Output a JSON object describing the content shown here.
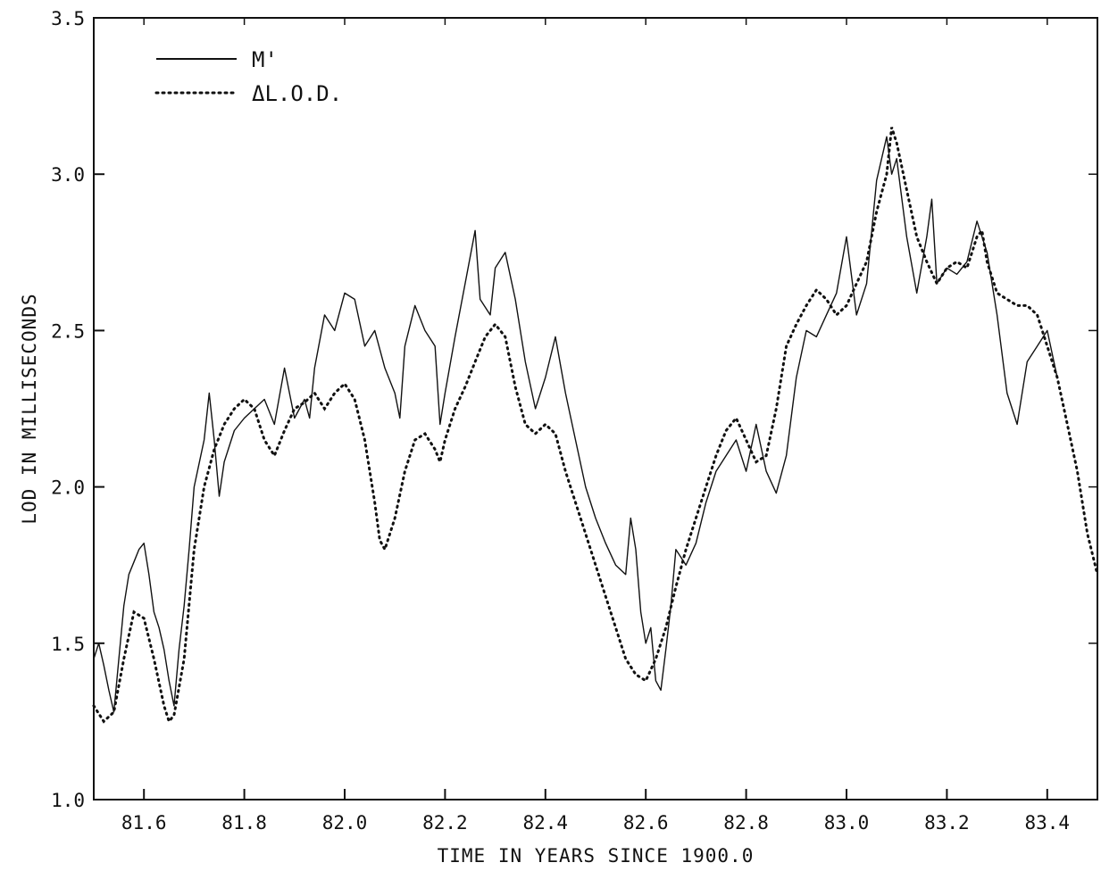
{
  "chart_data": {
    "type": "line",
    "title": "",
    "xlabel": "TIME IN YEARS SINCE 1900.0",
    "ylabel": "LOD IN MILLISECONDS",
    "xlim": [
      81.5,
      83.5
    ],
    "ylim": [
      1.0,
      3.5
    ],
    "grid": false,
    "legend_position": "top-left",
    "x_ticks": [
      81.6,
      81.8,
      82.0,
      82.2,
      82.4,
      82.6,
      82.8,
      83.0,
      83.2,
      83.4
    ],
    "x_tick_labels": [
      "81.6",
      "81.8",
      "82.0",
      "82.2",
      "82.4",
      "82.6",
      "82.8",
      "83.0",
      "83.2",
      "83.4"
    ],
    "y_ticks": [
      1.0,
      1.5,
      2.0,
      2.5,
      3.0,
      3.5
    ],
    "y_tick_labels": [
      "1.0",
      "1.5",
      "2.0",
      "2.5",
      "3.0",
      "3.5"
    ],
    "series": [
      {
        "name": "M'",
        "style": "solid",
        "color": "#111111",
        "points": [
          [
            81.5,
            1.45
          ],
          [
            81.51,
            1.5
          ],
          [
            81.52,
            1.43
          ],
          [
            81.53,
            1.35
          ],
          [
            81.54,
            1.28
          ],
          [
            81.55,
            1.45
          ],
          [
            81.56,
            1.62
          ],
          [
            81.57,
            1.72
          ],
          [
            81.58,
            1.76
          ],
          [
            81.59,
            1.8
          ],
          [
            81.6,
            1.82
          ],
          [
            81.61,
            1.72
          ],
          [
            81.62,
            1.6
          ],
          [
            81.63,
            1.55
          ],
          [
            81.64,
            1.48
          ],
          [
            81.65,
            1.38
          ],
          [
            81.66,
            1.3
          ],
          [
            81.67,
            1.48
          ],
          [
            81.68,
            1.62
          ],
          [
            81.69,
            1.8
          ],
          [
            81.7,
            2.0
          ],
          [
            81.72,
            2.15
          ],
          [
            81.73,
            2.3
          ],
          [
            81.74,
            2.15
          ],
          [
            81.75,
            1.97
          ],
          [
            81.76,
            2.08
          ],
          [
            81.78,
            2.18
          ],
          [
            81.8,
            2.22
          ],
          [
            81.82,
            2.25
          ],
          [
            81.84,
            2.28
          ],
          [
            81.86,
            2.2
          ],
          [
            81.88,
            2.38
          ],
          [
            81.9,
            2.22
          ],
          [
            81.92,
            2.28
          ],
          [
            81.93,
            2.22
          ],
          [
            81.94,
            2.38
          ],
          [
            81.96,
            2.55
          ],
          [
            81.98,
            2.5
          ],
          [
            82.0,
            2.62
          ],
          [
            82.02,
            2.6
          ],
          [
            82.04,
            2.45
          ],
          [
            82.06,
            2.5
          ],
          [
            82.08,
            2.38
          ],
          [
            82.1,
            2.3
          ],
          [
            82.11,
            2.22
          ],
          [
            82.12,
            2.45
          ],
          [
            82.14,
            2.58
          ],
          [
            82.16,
            2.5
          ],
          [
            82.18,
            2.45
          ],
          [
            82.19,
            2.2
          ],
          [
            82.2,
            2.3
          ],
          [
            82.22,
            2.48
          ],
          [
            82.24,
            2.65
          ],
          [
            82.26,
            2.82
          ],
          [
            82.27,
            2.6
          ],
          [
            82.29,
            2.55
          ],
          [
            82.3,
            2.7
          ],
          [
            82.32,
            2.75
          ],
          [
            82.34,
            2.6
          ],
          [
            82.36,
            2.4
          ],
          [
            82.38,
            2.25
          ],
          [
            82.4,
            2.35
          ],
          [
            82.42,
            2.48
          ],
          [
            82.44,
            2.3
          ],
          [
            82.46,
            2.15
          ],
          [
            82.48,
            2.0
          ],
          [
            82.5,
            1.9
          ],
          [
            82.52,
            1.82
          ],
          [
            82.54,
            1.75
          ],
          [
            82.56,
            1.72
          ],
          [
            82.57,
            1.9
          ],
          [
            82.58,
            1.8
          ],
          [
            82.59,
            1.6
          ],
          [
            82.6,
            1.5
          ],
          [
            82.61,
            1.55
          ],
          [
            82.62,
            1.38
          ],
          [
            82.63,
            1.35
          ],
          [
            82.64,
            1.48
          ],
          [
            82.65,
            1.62
          ],
          [
            82.66,
            1.8
          ],
          [
            82.68,
            1.75
          ],
          [
            82.7,
            1.82
          ],
          [
            82.72,
            1.95
          ],
          [
            82.74,
            2.05
          ],
          [
            82.76,
            2.1
          ],
          [
            82.78,
            2.15
          ],
          [
            82.8,
            2.05
          ],
          [
            82.82,
            2.2
          ],
          [
            82.84,
            2.05
          ],
          [
            82.86,
            1.98
          ],
          [
            82.88,
            2.1
          ],
          [
            82.9,
            2.35
          ],
          [
            82.92,
            2.5
          ],
          [
            82.94,
            2.48
          ],
          [
            82.96,
            2.55
          ],
          [
            82.98,
            2.62
          ],
          [
            83.0,
            2.8
          ],
          [
            83.02,
            2.55
          ],
          [
            83.04,
            2.65
          ],
          [
            83.06,
            2.98
          ],
          [
            83.08,
            3.12
          ],
          [
            83.09,
            3.0
          ],
          [
            83.1,
            3.05
          ],
          [
            83.12,
            2.8
          ],
          [
            83.14,
            2.62
          ],
          [
            83.16,
            2.8
          ],
          [
            83.17,
            2.92
          ],
          [
            83.18,
            2.65
          ],
          [
            83.2,
            2.7
          ],
          [
            83.22,
            2.68
          ],
          [
            83.24,
            2.72
          ],
          [
            83.26,
            2.85
          ],
          [
            83.28,
            2.75
          ],
          [
            83.3,
            2.55
          ],
          [
            83.32,
            2.3
          ],
          [
            83.34,
            2.2
          ],
          [
            83.36,
            2.4
          ],
          [
            83.38,
            2.45
          ],
          [
            83.4,
            2.5
          ],
          [
            83.42,
            2.35
          ]
        ]
      },
      {
        "name": "ΔL.O.D.",
        "style": "dotted",
        "color": "#111111",
        "points": [
          [
            81.5,
            1.3
          ],
          [
            81.52,
            1.25
          ],
          [
            81.54,
            1.28
          ],
          [
            81.56,
            1.45
          ],
          [
            81.58,
            1.6
          ],
          [
            81.6,
            1.58
          ],
          [
            81.62,
            1.45
          ],
          [
            81.64,
            1.3
          ],
          [
            81.65,
            1.25
          ],
          [
            81.66,
            1.27
          ],
          [
            81.68,
            1.45
          ],
          [
            81.7,
            1.8
          ],
          [
            81.72,
            2.0
          ],
          [
            81.74,
            2.12
          ],
          [
            81.76,
            2.2
          ],
          [
            81.78,
            2.25
          ],
          [
            81.8,
            2.28
          ],
          [
            81.82,
            2.25
          ],
          [
            81.84,
            2.15
          ],
          [
            81.86,
            2.1
          ],
          [
            81.88,
            2.18
          ],
          [
            81.9,
            2.25
          ],
          [
            81.92,
            2.27
          ],
          [
            81.94,
            2.3
          ],
          [
            81.96,
            2.25
          ],
          [
            81.98,
            2.3
          ],
          [
            82.0,
            2.33
          ],
          [
            82.02,
            2.28
          ],
          [
            82.04,
            2.15
          ],
          [
            82.06,
            1.95
          ],
          [
            82.07,
            1.83
          ],
          [
            82.08,
            1.8
          ],
          [
            82.1,
            1.9
          ],
          [
            82.12,
            2.05
          ],
          [
            82.14,
            2.15
          ],
          [
            82.16,
            2.17
          ],
          [
            82.18,
            2.12
          ],
          [
            82.19,
            2.08
          ],
          [
            82.2,
            2.15
          ],
          [
            82.22,
            2.25
          ],
          [
            82.24,
            2.32
          ],
          [
            82.26,
            2.4
          ],
          [
            82.28,
            2.48
          ],
          [
            82.3,
            2.52
          ],
          [
            82.32,
            2.48
          ],
          [
            82.34,
            2.32
          ],
          [
            82.36,
            2.2
          ],
          [
            82.38,
            2.17
          ],
          [
            82.4,
            2.2
          ],
          [
            82.42,
            2.17
          ],
          [
            82.44,
            2.05
          ],
          [
            82.46,
            1.95
          ],
          [
            82.48,
            1.85
          ],
          [
            82.5,
            1.75
          ],
          [
            82.52,
            1.65
          ],
          [
            82.54,
            1.55
          ],
          [
            82.56,
            1.45
          ],
          [
            82.58,
            1.4
          ],
          [
            82.6,
            1.38
          ],
          [
            82.62,
            1.45
          ],
          [
            82.64,
            1.55
          ],
          [
            82.66,
            1.68
          ],
          [
            82.68,
            1.8
          ],
          [
            82.7,
            1.9
          ],
          [
            82.72,
            2.0
          ],
          [
            82.74,
            2.1
          ],
          [
            82.76,
            2.18
          ],
          [
            82.78,
            2.22
          ],
          [
            82.8,
            2.15
          ],
          [
            82.82,
            2.08
          ],
          [
            82.84,
            2.1
          ],
          [
            82.86,
            2.25
          ],
          [
            82.88,
            2.45
          ],
          [
            82.9,
            2.52
          ],
          [
            82.92,
            2.58
          ],
          [
            82.94,
            2.63
          ],
          [
            82.96,
            2.6
          ],
          [
            82.98,
            2.55
          ],
          [
            83.0,
            2.58
          ],
          [
            83.02,
            2.65
          ],
          [
            83.04,
            2.72
          ],
          [
            83.06,
            2.88
          ],
          [
            83.08,
            3.0
          ],
          [
            83.09,
            3.15
          ],
          [
            83.1,
            3.1
          ],
          [
            83.12,
            2.95
          ],
          [
            83.14,
            2.8
          ],
          [
            83.16,
            2.72
          ],
          [
            83.18,
            2.65
          ],
          [
            83.2,
            2.7
          ],
          [
            83.22,
            2.72
          ],
          [
            83.24,
            2.7
          ],
          [
            83.26,
            2.8
          ],
          [
            83.27,
            2.82
          ],
          [
            83.28,
            2.72
          ],
          [
            83.3,
            2.62
          ],
          [
            83.32,
            2.6
          ],
          [
            83.34,
            2.58
          ],
          [
            83.36,
            2.58
          ],
          [
            83.38,
            2.55
          ],
          [
            83.4,
            2.45
          ],
          [
            83.42,
            2.35
          ],
          [
            83.44,
            2.2
          ],
          [
            83.46,
            2.05
          ],
          [
            83.48,
            1.85
          ],
          [
            83.5,
            1.72
          ]
        ]
      }
    ]
  }
}
